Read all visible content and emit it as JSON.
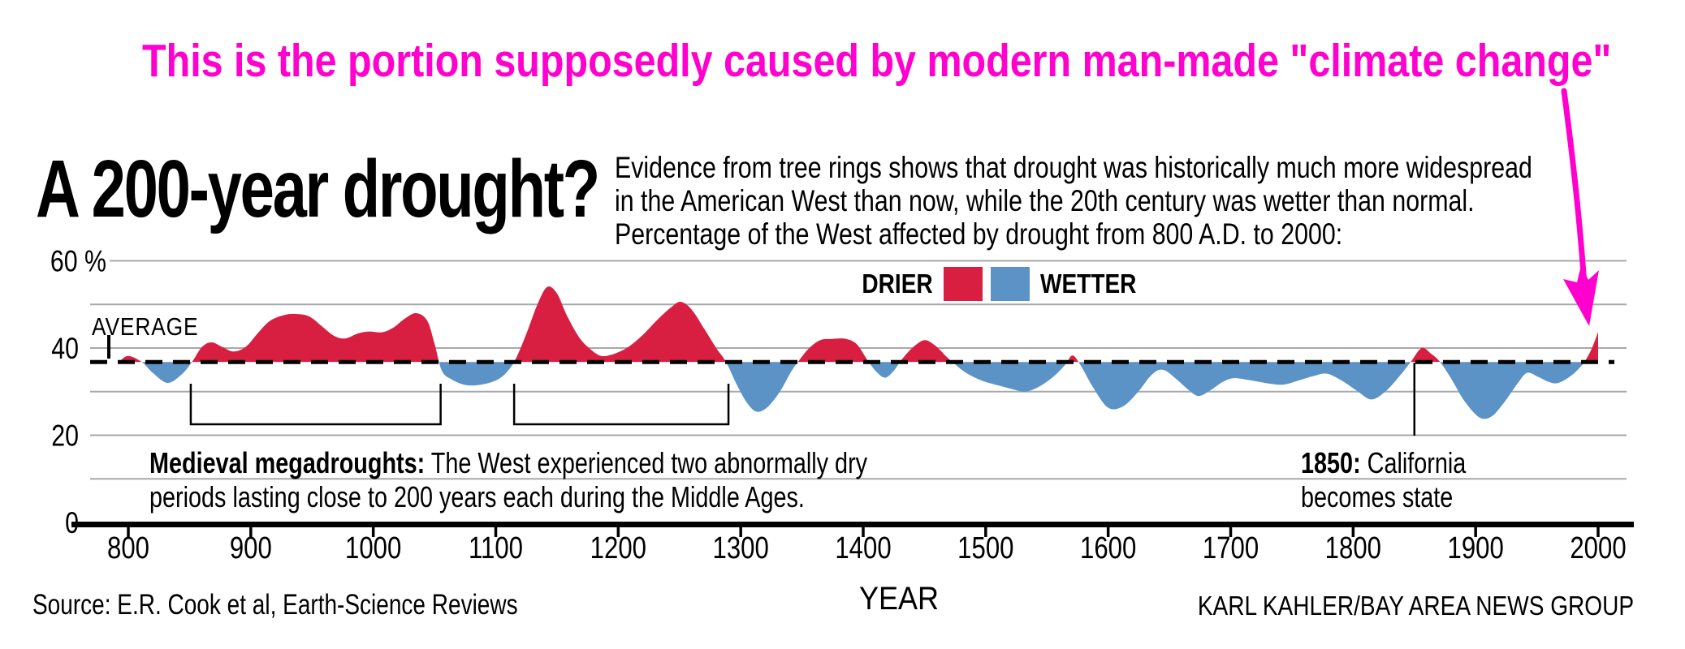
{
  "headline": {
    "text": "This is the portion supposedly caused by modern man-made \"climate change\"",
    "color": "#ff00cf"
  },
  "title": {
    "text": "A 200-year drought?"
  },
  "subtitle": {
    "lines": [
      "Evidence from tree rings shows that drought was historically much more widespread",
      "in the American West than now, while the 20th century was wetter than normal.",
      "Percentage of the West affected by drought from 800 A.D. to 2000:"
    ]
  },
  "legend": {
    "drier_label": "DRIER",
    "wetter_label": "WETTER",
    "drier_color": "#d81f42",
    "wetter_color": "#5b93c7"
  },
  "annotations": {
    "average_label": "AVERAGE",
    "medieval": {
      "lead": "Medieval megadroughts:",
      "line1_rest": " The West experienced two abnormally dry",
      "line2": "periods lasting close to 200 years each during the Middle Ages."
    },
    "y1850": {
      "lead": "1850:",
      "line1_rest": " California",
      "line2": "becomes state"
    }
  },
  "footer": {
    "source": "Source: E.R. Cook et al, Earth-Science Reviews",
    "xlabel": "YEAR",
    "credit": "KARL KAHLER/BAY AREA NEWS GROUP"
  },
  "chart_data": {
    "type": "area",
    "title": "A 200-year drought?",
    "xlabel": "YEAR",
    "ylabel": "Percentage of the West affected by drought",
    "xlim": [
      800,
      2000
    ],
    "ylim": [
      0,
      60
    ],
    "x_ticks": [
      800,
      900,
      1000,
      1100,
      1200,
      1300,
      1400,
      1500,
      1600,
      1700,
      1800,
      1900,
      2000
    ],
    "y_ticks": [
      {
        "value": 60,
        "label": "60 %"
      },
      {
        "value": 40,
        "label": "40"
      },
      {
        "value": 20,
        "label": "20"
      },
      {
        "value": 0,
        "label": "0"
      }
    ],
    "gridline_values": [
      60,
      50,
      40,
      30,
      20,
      10
    ],
    "grid": true,
    "legend_position": "top-center",
    "average_value": 36.8,
    "drier_color": "#d81f42",
    "wetter_color": "#5b93c7",
    "series": [
      {
        "name": "Percent of West in drought (red = drier than average, blue = wetter)",
        "points": [
          [
            793,
            37.0
          ],
          [
            800,
            38.2
          ],
          [
            811,
            36.8
          ],
          [
            820,
            34.3
          ],
          [
            832,
            32.0
          ],
          [
            843,
            33.8
          ],
          [
            852,
            36.8
          ],
          [
            860,
            40.2
          ],
          [
            868,
            41.3
          ],
          [
            877,
            40.2
          ],
          [
            886,
            39.2
          ],
          [
            896,
            40.3
          ],
          [
            906,
            43.5
          ],
          [
            916,
            46.3
          ],
          [
            928,
            47.6
          ],
          [
            938,
            47.8
          ],
          [
            948,
            47.2
          ],
          [
            958,
            45.0
          ],
          [
            968,
            42.8
          ],
          [
            977,
            42.2
          ],
          [
            988,
            43.4
          ],
          [
            997,
            43.8
          ],
          [
            1007,
            43.6
          ],
          [
            1016,
            44.6
          ],
          [
            1026,
            46.8
          ],
          [
            1035,
            48.0
          ],
          [
            1044,
            46.3
          ],
          [
            1050,
            41.0
          ],
          [
            1056,
            34.8
          ],
          [
            1064,
            32.8
          ],
          [
            1076,
            31.5
          ],
          [
            1090,
            31.7
          ],
          [
            1103,
            33.0
          ],
          [
            1112,
            35.5
          ],
          [
            1118,
            38.5
          ],
          [
            1126,
            44.0
          ],
          [
            1134,
            50.0
          ],
          [
            1142,
            54.0
          ],
          [
            1150,
            52.5
          ],
          [
            1158,
            47.5
          ],
          [
            1168,
            42.5
          ],
          [
            1177,
            39.8
          ],
          [
            1186,
            38.2
          ],
          [
            1196,
            38.6
          ],
          [
            1208,
            40.2
          ],
          [
            1220,
            43.0
          ],
          [
            1232,
            46.5
          ],
          [
            1243,
            49.3
          ],
          [
            1251,
            50.6
          ],
          [
            1260,
            48.8
          ],
          [
            1270,
            44.5
          ],
          [
            1280,
            40.0
          ],
          [
            1288,
            36.8
          ],
          [
            1297,
            31.5
          ],
          [
            1305,
            27.5
          ],
          [
            1313,
            25.4
          ],
          [
            1322,
            26.5
          ],
          [
            1332,
            30.0
          ],
          [
            1341,
            34.5
          ],
          [
            1348,
            37.3
          ],
          [
            1356,
            40.0
          ],
          [
            1365,
            41.8
          ],
          [
            1375,
            42.1
          ],
          [
            1386,
            42.1
          ],
          [
            1395,
            40.8
          ],
          [
            1404,
            37.0
          ],
          [
            1411,
            34.5
          ],
          [
            1418,
            33.2
          ],
          [
            1425,
            34.8
          ],
          [
            1431,
            37.2
          ],
          [
            1440,
            40.0
          ],
          [
            1450,
            41.8
          ],
          [
            1459,
            40.5
          ],
          [
            1468,
            38.0
          ],
          [
            1474,
            36.5
          ],
          [
            1484,
            34.3
          ],
          [
            1497,
            32.5
          ],
          [
            1512,
            31.3
          ],
          [
            1524,
            30.4
          ],
          [
            1533,
            30.0
          ],
          [
            1544,
            31.2
          ],
          [
            1556,
            33.6
          ],
          [
            1565,
            36.2
          ],
          [
            1571,
            38.3
          ],
          [
            1578,
            35.8
          ],
          [
            1588,
            30.8
          ],
          [
            1600,
            26.3
          ],
          [
            1612,
            26.6
          ],
          [
            1624,
            29.8
          ],
          [
            1636,
            34.0
          ],
          [
            1645,
            35.0
          ],
          [
            1656,
            32.8
          ],
          [
            1666,
            30.3
          ],
          [
            1674,
            29.0
          ],
          [
            1684,
            30.4
          ],
          [
            1694,
            32.3
          ],
          [
            1703,
            33.1
          ],
          [
            1716,
            32.6
          ],
          [
            1730,
            31.9
          ],
          [
            1743,
            31.6
          ],
          [
            1756,
            32.6
          ],
          [
            1768,
            33.6
          ],
          [
            1779,
            34.1
          ],
          [
            1792,
            32.3
          ],
          [
            1804,
            30.0
          ],
          [
            1815,
            28.2
          ],
          [
            1827,
            30.2
          ],
          [
            1838,
            33.6
          ],
          [
            1847,
            36.8
          ],
          [
            1856,
            40.0
          ],
          [
            1864,
            38.6
          ],
          [
            1871,
            36.8
          ],
          [
            1880,
            33.0
          ],
          [
            1891,
            27.8
          ],
          [
            1903,
            24.1
          ],
          [
            1913,
            24.3
          ],
          [
            1924,
            27.8
          ],
          [
            1934,
            31.8
          ],
          [
            1942,
            34.3
          ],
          [
            1951,
            33.4
          ],
          [
            1959,
            32.3
          ],
          [
            1966,
            31.9
          ],
          [
            1974,
            32.9
          ],
          [
            1982,
            34.6
          ],
          [
            1989,
            36.9
          ],
          [
            1995,
            40.0
          ],
          [
            2000,
            43.7
          ]
        ]
      }
    ],
    "drought_brackets": [
      {
        "from_year": 851,
        "to_year": 1055
      },
      {
        "from_year": 1115,
        "to_year": 1290
      }
    ],
    "event_marker_year": 1850,
    "arrow_color": "#ff00cf"
  }
}
